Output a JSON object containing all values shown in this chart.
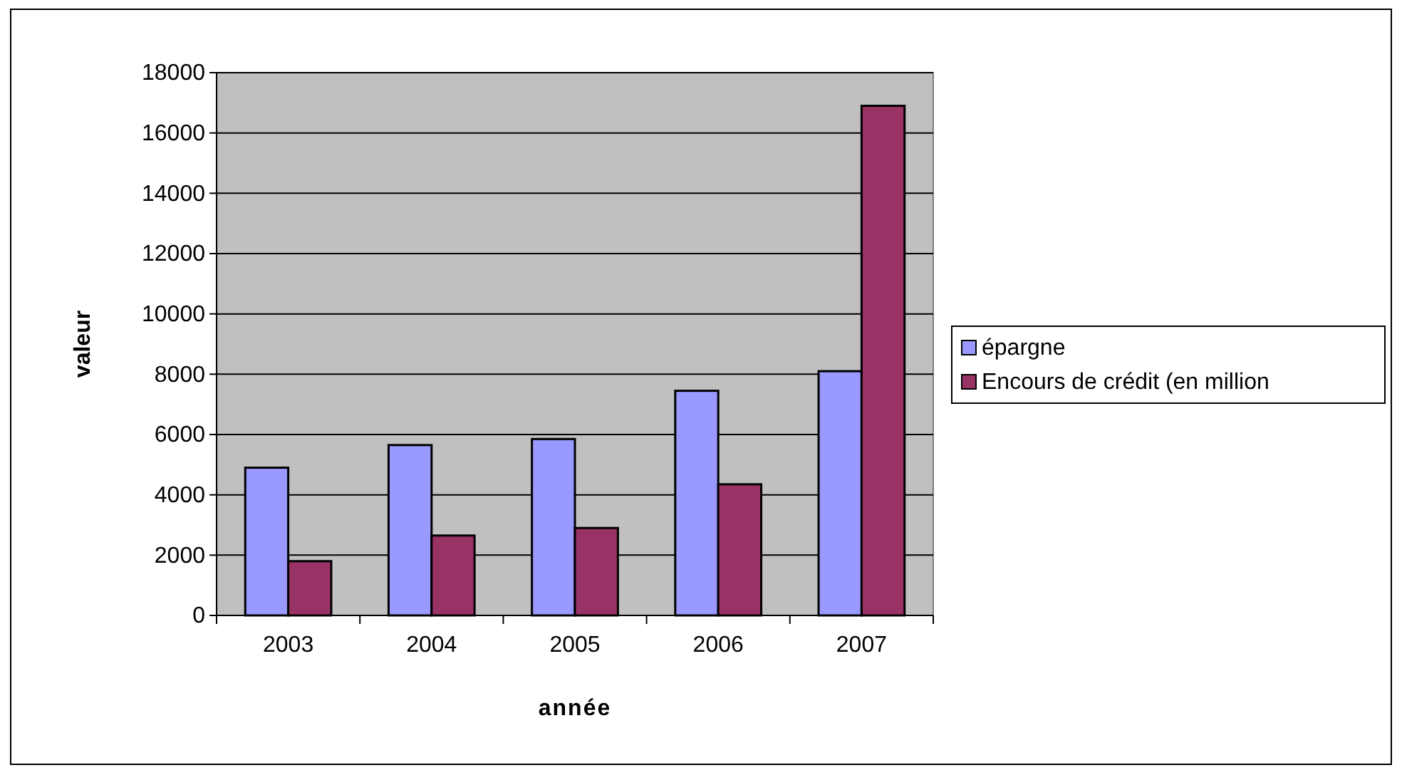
{
  "chart_data": {
    "type": "bar",
    "xlabel": "année",
    "ylabel": "valeur",
    "categories": [
      "2003",
      "2004",
      "2005",
      "2006",
      "2007"
    ],
    "series": [
      {
        "name": "épargne",
        "color": "#9999ff",
        "values": [
          4900,
          5650,
          5850,
          7450,
          8100
        ]
      },
      {
        "name": "Encours de crédit (en million",
        "color": "#993366",
        "values": [
          1800,
          2650,
          2900,
          4350,
          16900
        ]
      }
    ],
    "ylim": [
      0,
      18000
    ],
    "yticks": [
      0,
      2000,
      4000,
      6000,
      8000,
      10000,
      12000,
      14000,
      16000,
      18000
    ],
    "grid": "y",
    "legend": "right"
  }
}
